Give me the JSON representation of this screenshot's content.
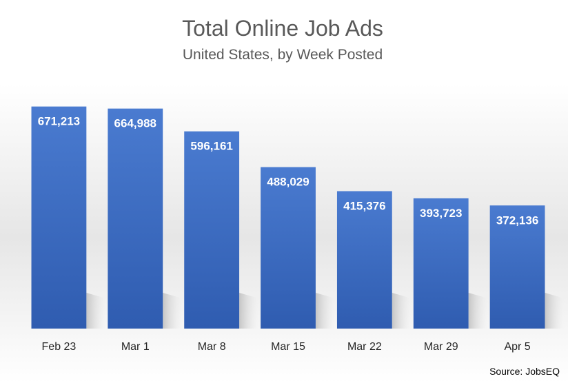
{
  "chart_data": {
    "type": "bar",
    "title": "Total Online Job Ads",
    "subtitle": "United States, by Week Posted",
    "categories": [
      "Feb 23",
      "Mar 1",
      "Mar 8",
      "Mar 15",
      "Mar 22",
      "Mar 29",
      "Apr 5"
    ],
    "values": [
      671213,
      664988,
      596161,
      488029,
      415376,
      393723,
      372136
    ],
    "data_labels": [
      "671,213",
      "664,988",
      "596,161",
      "488,029",
      "415,376",
      "393,723",
      "372,136"
    ],
    "source": "Source: JobsEQ",
    "ylim": [
      0,
      710000
    ],
    "y_axis_visible": false,
    "grid": false,
    "legend": "none",
    "bar_color": "#4472c4"
  }
}
